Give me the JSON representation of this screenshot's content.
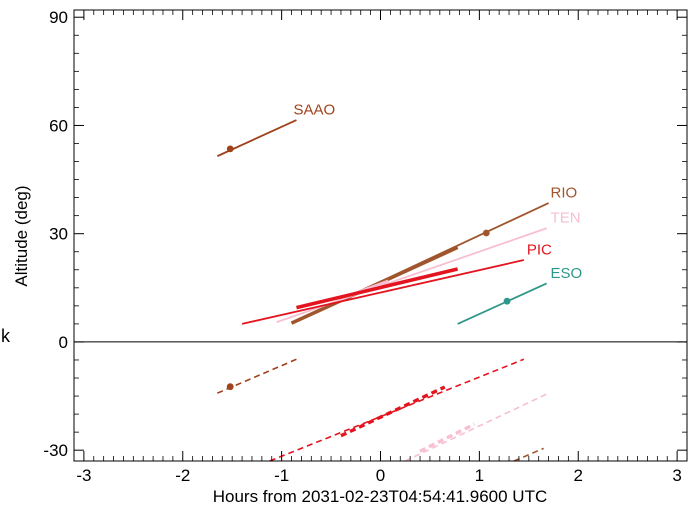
{
  "chart_data": {
    "type": "line",
    "title": "",
    "xlabel": "Hours from 2031-02-23T04:54:41.9600 UTC",
    "ylabel": "Altitude (deg)",
    "xlim": [
      -3.1,
      3.1
    ],
    "ylim": [
      -33,
      92
    ],
    "xticks": [
      -3,
      -2,
      -1,
      0,
      1,
      2,
      3
    ],
    "yticks": [
      -30,
      0,
      30,
      60,
      90
    ],
    "x_tick_labels": [
      "-3",
      "-2",
      "-1",
      "0",
      "1",
      "2",
      "3"
    ],
    "y_tick_labels": [
      "-30",
      "0",
      "30",
      "60",
      "90"
    ],
    "zero_line": true,
    "side_glyph": "k",
    "series": [
      {
        "name": "SAAO",
        "color": "#a0421a",
        "line": {
          "x": [
            -1.65,
            -0.85
          ],
          "y": [
            51.5,
            61.5
          ]
        },
        "marker": {
          "x": [
            -1.52
          ],
          "y": [
            53.5
          ]
        },
        "below": {
          "x": [
            -1.65,
            -0.85
          ],
          "y": [
            -14.2,
            -4.8
          ]
        },
        "below_marker": {
          "x": [
            -1.52
          ],
          "y": [
            -12.4
          ]
        },
        "label": {
          "text": "SAAO",
          "x": -0.88,
          "y": 62.5
        }
      },
      {
        "name": "RIO",
        "color": "#a0552c",
        "line": {
          "x": [
            -0.9,
            1.7
          ],
          "y": [
            5.2,
            38.5
          ]
        },
        "thick": {
          "x": [
            -0.9,
            0.78
          ],
          "y": [
            5.2,
            26.2
          ]
        },
        "marker": {
          "x": [
            1.07
          ],
          "y": [
            30.2
          ]
        },
        "below": {
          "x": [
            1.35,
            1.65
          ],
          "y": [
            -33,
            -29.5
          ]
        },
        "label": {
          "text": "RIO",
          "x": 1.72,
          "y": 39.5
        }
      },
      {
        "name": "TEN",
        "color": "#f7bfd0",
        "line": {
          "x": [
            -1.05,
            1.68
          ],
          "y": [
            5.5,
            31.5
          ]
        },
        "thick": {
          "x": [
            -0.38,
            0.08
          ],
          "y": [
            12.2,
            16.8
          ]
        },
        "below": {
          "x": [
            0.25,
            1.7
          ],
          "y": [
            -33,
            -14.2
          ]
        },
        "below_thick": {
          "x": [
            0.4,
            0.95
          ],
          "y": [
            -30.3,
            -22.8
          ]
        },
        "label": {
          "text": "TEN",
          "x": 1.72,
          "y": 32.5
        }
      },
      {
        "name": "PIC",
        "color": "#e3141f",
        "line": {
          "x": [
            -1.4,
            1.45
          ],
          "y": [
            5.0,
            22.7
          ]
        },
        "thick": {
          "x": [
            -0.85,
            0.78
          ],
          "y": [
            9.5,
            20.2
          ]
        },
        "below": {
          "x": [
            -1.12,
            1.45
          ],
          "y": [
            -33,
            -4.8
          ]
        },
        "below_thick": {
          "x": [
            -0.4,
            0.65
          ],
          "y": [
            -26.0,
            -12.5
          ]
        },
        "label": {
          "text": "PIC",
          "x": 1.48,
          "y": 23.7
        }
      },
      {
        "name": "ESO",
        "color": "#2f968a",
        "line": {
          "x": [
            0.78,
            1.68
          ],
          "y": [
            5.0,
            16.2
          ]
        },
        "marker": {
          "x": [
            1.28
          ],
          "y": [
            11.3
          ]
        },
        "label": {
          "text": "ESO",
          "x": 1.72,
          "y": 17.2
        }
      }
    ]
  }
}
